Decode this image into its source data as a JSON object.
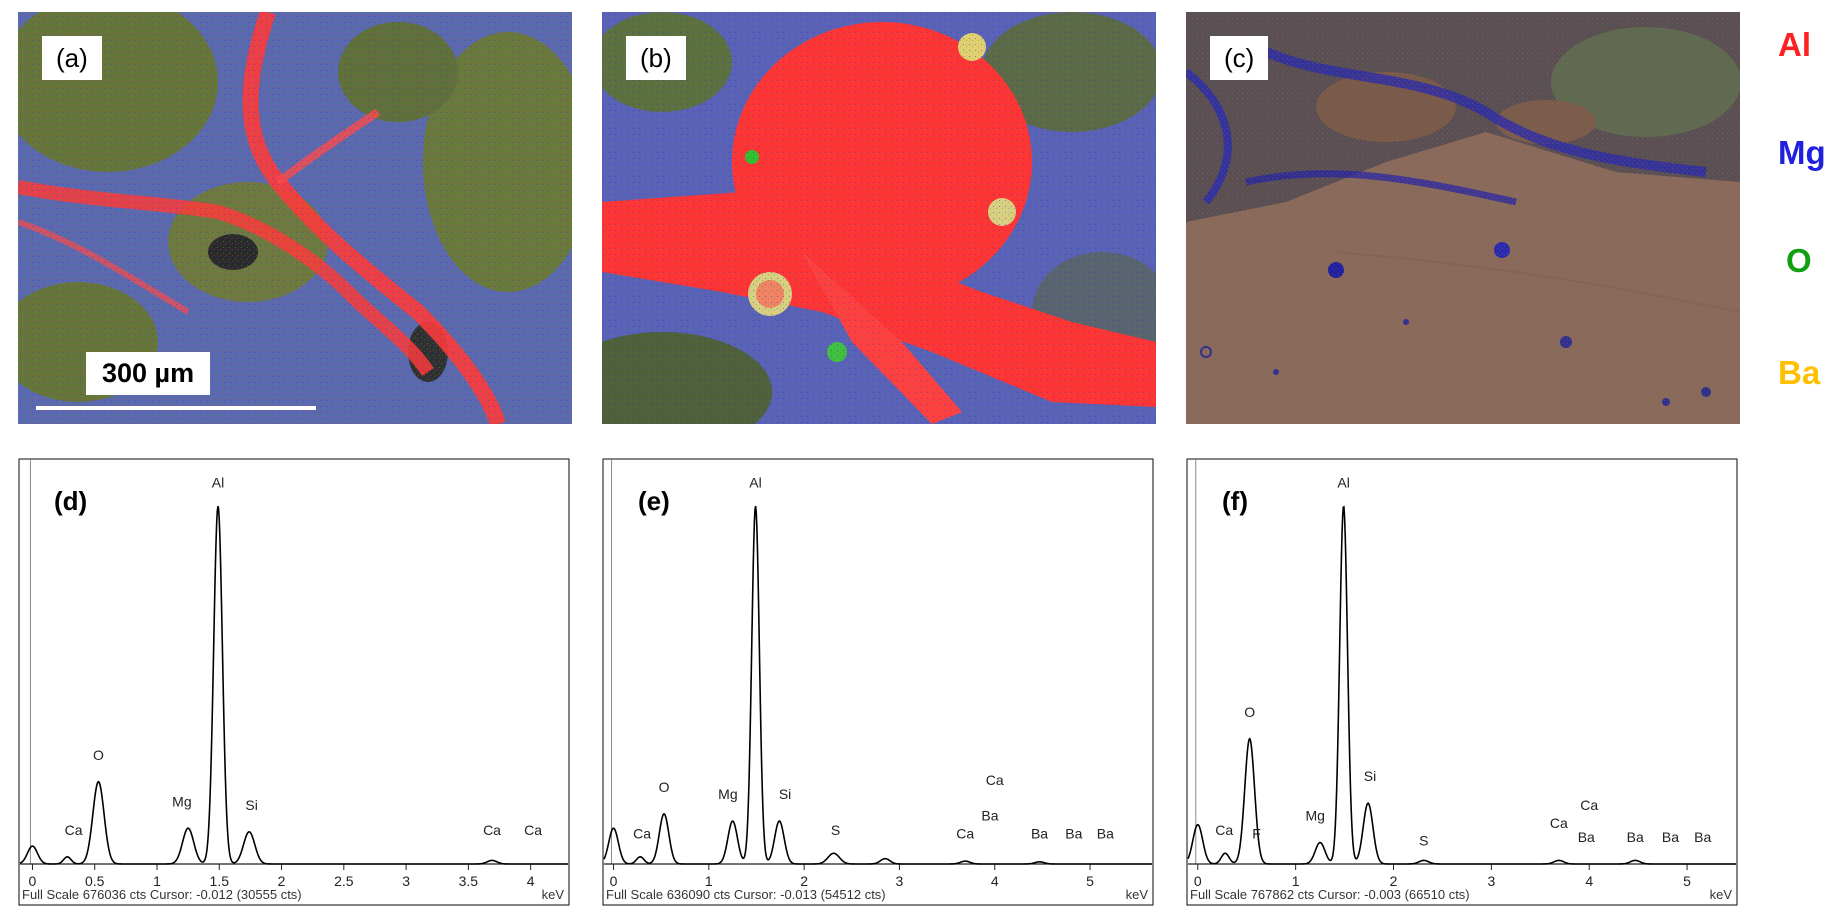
{
  "maps": [
    {
      "label": "(a)",
      "scale_bar": "300 µm"
    },
    {
      "label": "(b)"
    },
    {
      "label": "(c)"
    }
  ],
  "legend": [
    {
      "element": "Al",
      "color": "#ff2020"
    },
    {
      "element": "Mg",
      "color": "#2020e0"
    },
    {
      "element": "O",
      "color": "#10a010"
    },
    {
      "element": "Ba",
      "color": "#ffc000"
    }
  ],
  "chart_data": [
    {
      "type": "line",
      "label": "(d)",
      "xlabel": "keV",
      "xlim": [
        -0.1,
        4.3
      ],
      "xticks": [
        0,
        0.5,
        1,
        1.5,
        2,
        2.5,
        3,
        3.5,
        4
      ],
      "xtick_labels": [
        "0",
        "0.5",
        "1",
        "1.5",
        "2",
        "2.5",
        "3",
        "3.5",
        "4"
      ],
      "footer": "Full Scale 676036 cts Cursor: -0.012  (30555 cts)",
      "peaks": [
        {
          "x": 0.0,
          "height": 0.05,
          "w": 0.04
        },
        {
          "x": 0.28,
          "height": 0.02,
          "w": 0.03
        },
        {
          "x": 0.53,
          "height": 0.23,
          "w": 0.045
        },
        {
          "x": 1.25,
          "height": 0.1,
          "w": 0.045
        },
        {
          "x": 1.49,
          "height": 1.0,
          "w": 0.035
        },
        {
          "x": 1.74,
          "height": 0.09,
          "w": 0.045
        },
        {
          "x": 3.69,
          "height": 0.01,
          "w": 0.04
        }
      ],
      "labels": [
        {
          "text": "Ca",
          "x": 0.33,
          "level": 0.07
        },
        {
          "text": "O",
          "x": 0.53,
          "level": 0.28
        },
        {
          "text": "Mg",
          "x": 1.2,
          "level": 0.15
        },
        {
          "text": "Al",
          "x": 1.49,
          "level": 1.04
        },
        {
          "text": "Si",
          "x": 1.76,
          "level": 0.14
        },
        {
          "text": "Ca",
          "x": 3.69,
          "level": 0.07
        },
        {
          "text": "Ca",
          "x": 4.02,
          "level": 0.07
        }
      ]
    },
    {
      "type": "line",
      "label": "(e)",
      "xlabel": "keV",
      "xlim": [
        -0.1,
        5.65
      ],
      "xticks": [
        0,
        1,
        2,
        3,
        4,
        5
      ],
      "xtick_labels": [
        "0",
        "1",
        "2",
        "3",
        "4",
        "5"
      ],
      "footer": "Full Scale 636090 cts Cursor: -0.013  (54512 cts)",
      "peaks": [
        {
          "x": 0.0,
          "height": 0.1,
          "w": 0.05
        },
        {
          "x": 0.28,
          "height": 0.02,
          "w": 0.04
        },
        {
          "x": 0.53,
          "height": 0.14,
          "w": 0.05
        },
        {
          "x": 1.25,
          "height": 0.12,
          "w": 0.05
        },
        {
          "x": 1.49,
          "height": 1.0,
          "w": 0.04
        },
        {
          "x": 1.74,
          "height": 0.12,
          "w": 0.05
        },
        {
          "x": 2.31,
          "height": 0.03,
          "w": 0.06
        },
        {
          "x": 2.85,
          "height": 0.015,
          "w": 0.05
        },
        {
          "x": 3.69,
          "height": 0.008,
          "w": 0.05
        },
        {
          "x": 4.47,
          "height": 0.006,
          "w": 0.05
        }
      ],
      "labels": [
        {
          "text": "Ca",
          "x": 0.3,
          "level": 0.06
        },
        {
          "text": "O",
          "x": 0.53,
          "level": 0.19
        },
        {
          "text": "Mg",
          "x": 1.2,
          "level": 0.17
        },
        {
          "text": "Al",
          "x": 1.49,
          "level": 1.04
        },
        {
          "text": "Si",
          "x": 1.8,
          "level": 0.17
        },
        {
          "text": "S",
          "x": 2.33,
          "level": 0.07
        },
        {
          "text": "Ca",
          "x": 3.69,
          "level": 0.06
        },
        {
          "text": "Ba",
          "x": 3.95,
          "level": 0.11
        },
        {
          "text": "Ca",
          "x": 4.0,
          "level": 0.21
        },
        {
          "text": "Ba",
          "x": 4.47,
          "level": 0.06
        },
        {
          "text": "Ba",
          "x": 4.83,
          "level": 0.06
        },
        {
          "text": "Ba",
          "x": 5.16,
          "level": 0.06
        }
      ]
    },
    {
      "type": "line",
      "label": "(f)",
      "xlabel": "keV",
      "xlim": [
        -0.1,
        5.5
      ],
      "xticks": [
        0,
        1,
        2,
        3,
        4,
        5
      ],
      "xtick_labels": [
        "0",
        "1",
        "2",
        "3",
        "4",
        "5"
      ],
      "footer": "Full Scale 767862 cts Cursor: -0.003  (66510 cts)",
      "peaks": [
        {
          "x": 0.0,
          "height": 0.11,
          "w": 0.05
        },
        {
          "x": 0.28,
          "height": 0.03,
          "w": 0.04
        },
        {
          "x": 0.53,
          "height": 0.35,
          "w": 0.05
        },
        {
          "x": 1.25,
          "height": 0.06,
          "w": 0.05
        },
        {
          "x": 1.49,
          "height": 1.0,
          "w": 0.04
        },
        {
          "x": 1.74,
          "height": 0.17,
          "w": 0.05
        },
        {
          "x": 2.31,
          "height": 0.01,
          "w": 0.05
        },
        {
          "x": 3.69,
          "height": 0.01,
          "w": 0.05
        },
        {
          "x": 4.47,
          "height": 0.01,
          "w": 0.05
        }
      ],
      "labels": [
        {
          "text": "Ca",
          "x": 0.27,
          "level": 0.07
        },
        {
          "text": "F",
          "x": 0.6,
          "level": 0.06
        },
        {
          "text": "O",
          "x": 0.53,
          "level": 0.4
        },
        {
          "text": "Mg",
          "x": 1.2,
          "level": 0.11
        },
        {
          "text": "Al",
          "x": 1.49,
          "level": 1.04
        },
        {
          "text": "Si",
          "x": 1.76,
          "level": 0.22
        },
        {
          "text": "S",
          "x": 2.31,
          "level": 0.04
        },
        {
          "text": "Ca",
          "x": 3.69,
          "level": 0.09
        },
        {
          "text": "Ba",
          "x": 3.97,
          "level": 0.05
        },
        {
          "text": "Ca",
          "x": 4.0,
          "level": 0.14
        },
        {
          "text": "Ba",
          "x": 4.47,
          "level": 0.05
        },
        {
          "text": "Ba",
          "x": 4.83,
          "level": 0.05
        },
        {
          "text": "Ba",
          "x": 5.16,
          "level": 0.05
        }
      ]
    }
  ]
}
